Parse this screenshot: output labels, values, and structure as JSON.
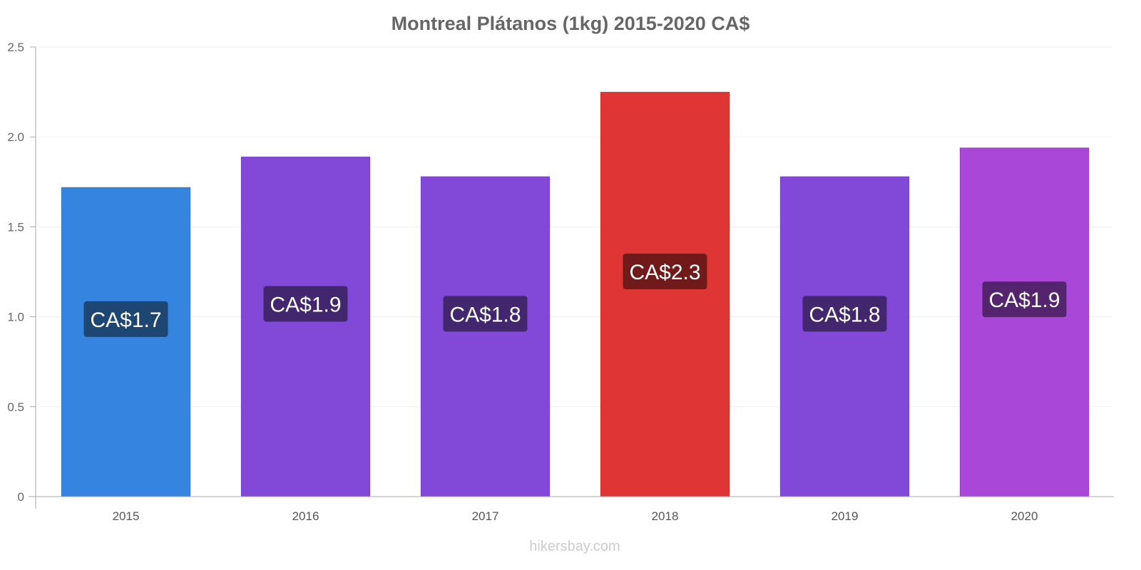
{
  "chart_data": {
    "type": "bar",
    "title": "Montreal Plátanos (1kg) 2015-2020 CA$",
    "categories": [
      "2015",
      "2016",
      "2017",
      "2018",
      "2019",
      "2020"
    ],
    "values": [
      1.72,
      1.89,
      1.78,
      2.25,
      1.78,
      1.94
    ],
    "data_labels": [
      "CA$1.7",
      "CA$1.9",
      "CA$1.8",
      "CA$2.3",
      "CA$1.8",
      "CA$1.9"
    ],
    "bar_colors": [
      "#3584e0",
      "#8249d8",
      "#8249d8",
      "#e03535",
      "#8249d8",
      "#a847d8"
    ],
    "label_colors": [
      "#1d4672",
      "#42276e",
      "#42276e",
      "#701a1a",
      "#42276e",
      "#55246e"
    ],
    "yticks": [
      "0",
      "0.5",
      "1.0",
      "1.5",
      "2.0",
      "2.5"
    ],
    "ylim": [
      0,
      2.5
    ],
    "xlabel": "",
    "ylabel": "",
    "grid": true
  },
  "footer": "hikersbay.com"
}
